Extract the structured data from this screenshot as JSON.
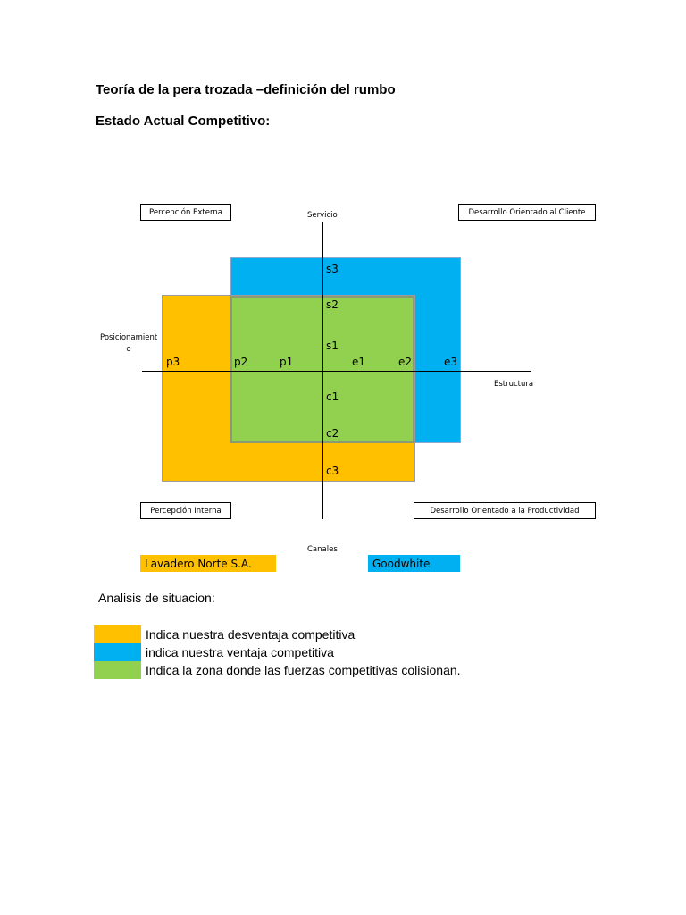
{
  "title": "Teoría de la pera trozada –definición del rumbo",
  "subtitle": "Estado Actual Competitivo:",
  "diagram": {
    "quadrant_labels": {
      "top_left": "Percepción Externa",
      "top_right": "Desarrollo Orientado al Cliente",
      "bottom_left": "Percepción Interna",
      "bottom_right": "Desarrollo Orientado a la Productividad"
    },
    "axis_names": {
      "top": "Servicio",
      "right": "Estructura",
      "bottom": "Canales",
      "left_line1": "Posicionamient",
      "left_line2": "o"
    },
    "ticks": {
      "s3": "s3",
      "s2": "s2",
      "s1": "s1",
      "c1": "c1",
      "c2": "c2",
      "c3": "c3",
      "p3": "p3",
      "p2": "p2",
      "p1": "p1",
      "e1": "e1",
      "e2": "e2",
      "e3": "e3"
    },
    "colors": {
      "orange": "#FFC000",
      "blue": "#00B0F0",
      "green": "#92D050"
    }
  },
  "companies": {
    "left": "Lavadero Norte S.A.",
    "right": "Goodwhite"
  },
  "analysis": {
    "heading": "Analisis de situacion:",
    "items": [
      {
        "text": "Indica nuestra desventaja competitiva",
        "color": "#FFC000"
      },
      {
        "text": "indica nuestra ventaja competitiva",
        "color": "#00B0F0"
      },
      {
        "text": "Indica la zona donde las fuerzas competitivas colisionan.",
        "color": "#92D050"
      }
    ]
  }
}
